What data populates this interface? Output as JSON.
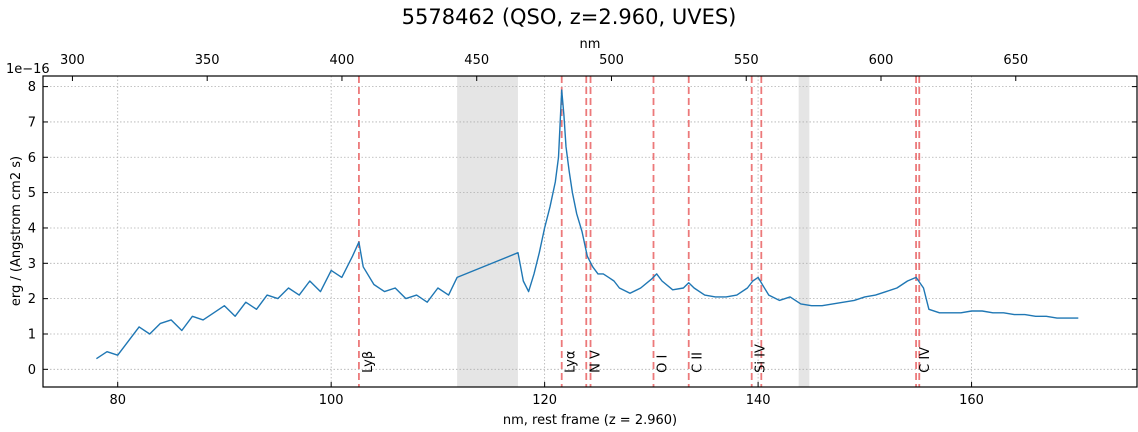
{
  "chart_data": {
    "type": "line",
    "title": "5578462 (QSO, z=2.960, UVES)",
    "xlabel": "nm, rest frame (z = 2.960)",
    "ylabel": "erg / (Angstrom cm2 s)",
    "x2label": "nm",
    "y_offset_label": "1e−16",
    "xlim": [
      73,
      175.5
    ],
    "ylim": [
      -0.5,
      8.3
    ],
    "xticks": [
      80,
      100,
      120,
      140,
      160
    ],
    "xtick_labels": [
      "80",
      "100",
      "120",
      "140",
      "160"
    ],
    "yticks": [
      0,
      1,
      2,
      3,
      4,
      5,
      6,
      7,
      8
    ],
    "ytick_labels": [
      "0",
      "1",
      "2",
      "3",
      "4",
      "5",
      "6",
      "7",
      "8"
    ],
    "top_axis": {
      "redshift_factor": 3.96,
      "ticks": [
        300,
        350,
        400,
        450,
        500,
        550,
        600,
        650
      ],
      "tick_labels": [
        "300",
        "350",
        "400",
        "450",
        "500",
        "550",
        "600",
        "650"
      ]
    },
    "grid": true,
    "line_color": "#1f77b4",
    "marker_color": "#e8585a",
    "gap_color": "#e5e5e5",
    "gaps": [
      [
        111.8,
        117.5
      ],
      [
        143.8,
        144.8
      ]
    ],
    "emission_lines": [
      {
        "x": 102.6,
        "label": "Lyβ"
      },
      {
        "x": 121.6,
        "label": "Lyα"
      },
      {
        "x": 123.9,
        "label": "N V"
      },
      {
        "x": 124.3,
        "label": ""
      },
      {
        "x": 130.2,
        "label": "O I"
      },
      {
        "x": 133.5,
        "label": "C II"
      },
      {
        "x": 139.4,
        "label": "Si IV"
      },
      {
        "x": 140.3,
        "label": ""
      },
      {
        "x": 154.8,
        "label": "C IV"
      },
      {
        "x": 155.1,
        "label": ""
      }
    ],
    "series": [
      {
        "x": [
          78,
          79,
          80,
          81,
          82,
          83,
          84,
          85,
          86,
          87,
          88,
          89,
          90,
          91,
          92,
          93,
          94,
          95,
          96,
          97,
          98,
          99,
          100,
          101,
          102,
          102.6,
          103,
          104,
          105,
          106,
          107,
          108,
          109,
          110,
          111,
          111.8,
          117.5,
          118,
          118.5,
          119,
          119.5,
          120,
          120.5,
          121,
          121.3,
          121.6,
          121.8,
          122,
          122.3,
          122.6,
          123,
          123.5,
          124,
          124.5,
          125,
          125.5,
          126,
          126.5,
          127,
          128,
          129,
          130,
          130.5,
          131,
          132,
          133,
          133.5,
          134,
          135,
          136,
          137,
          138,
          139,
          139.5,
          140,
          140.5,
          141,
          142,
          143,
          144,
          145,
          146,
          147,
          148,
          149,
          150,
          151,
          152,
          153,
          154,
          154.8,
          155.5,
          156,
          157,
          158,
          159,
          160,
          161,
          162,
          163,
          164,
          165,
          166,
          167,
          168,
          169,
          170
        ],
        "y": [
          0.3,
          0.5,
          0.4,
          0.8,
          1.2,
          1.0,
          1.3,
          1.4,
          1.1,
          1.5,
          1.4,
          1.6,
          1.8,
          1.5,
          1.9,
          1.7,
          2.1,
          2.0,
          2.3,
          2.1,
          2.5,
          2.2,
          2.8,
          2.6,
          3.2,
          3.6,
          2.9,
          2.4,
          2.2,
          2.3,
          2.0,
          2.1,
          1.9,
          2.3,
          2.1,
          2.6,
          3.3,
          2.5,
          2.2,
          2.7,
          3.3,
          4.0,
          4.6,
          5.3,
          6.0,
          7.9,
          7.2,
          6.3,
          5.6,
          5.0,
          4.4,
          3.9,
          3.2,
          2.9,
          2.7,
          2.7,
          2.6,
          2.5,
          2.3,
          2.15,
          2.3,
          2.55,
          2.7,
          2.5,
          2.25,
          2.3,
          2.45,
          2.3,
          2.1,
          2.05,
          2.05,
          2.1,
          2.3,
          2.5,
          2.6,
          2.35,
          2.1,
          1.95,
          2.05,
          1.85,
          1.8,
          1.8,
          1.85,
          1.9,
          1.95,
          2.05,
          2.1,
          2.2,
          2.3,
          2.5,
          2.6,
          2.3,
          1.7,
          1.6,
          1.6,
          1.6,
          1.65,
          1.65,
          1.6,
          1.6,
          1.55,
          1.55,
          1.5,
          1.5,
          1.45,
          1.45,
          1.45
        ]
      }
    ]
  }
}
